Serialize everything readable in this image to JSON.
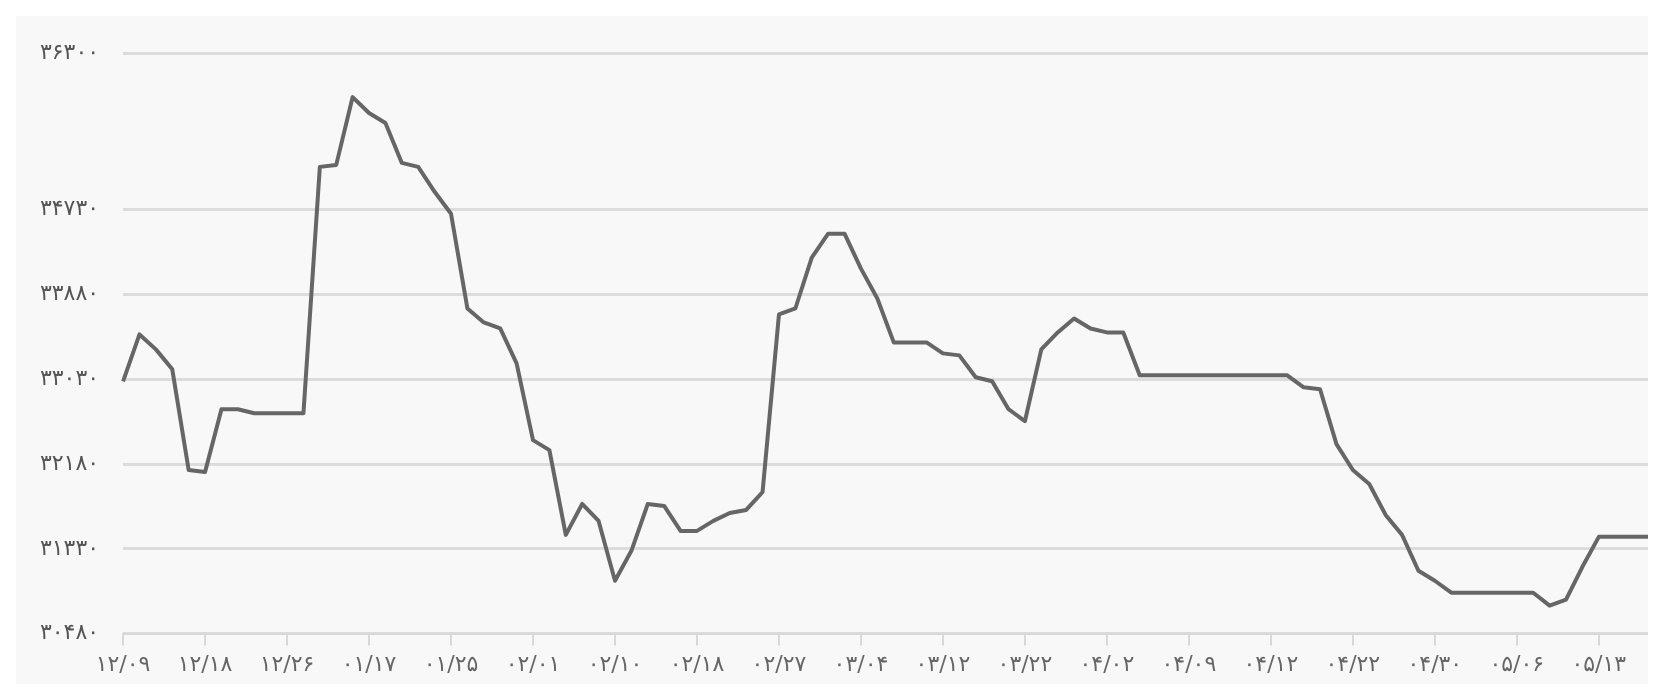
{
  "chart_data": {
    "type": "line",
    "categories": [
      "۱۲/۰۹",
      null,
      null,
      null,
      null,
      "۱۲/۱۸",
      null,
      null,
      null,
      null,
      "۱۲/۲۶",
      null,
      null,
      null,
      null,
      "۰۱/۱۷",
      null,
      null,
      null,
      null,
      "۰۱/۲۵",
      null,
      null,
      null,
      null,
      "۰۲/۰۱",
      null,
      null,
      null,
      null,
      "۰۲/۱۰",
      null,
      null,
      null,
      null,
      "۰۲/۱۸",
      null,
      null,
      null,
      null,
      "۰۲/۲۷",
      null,
      null,
      null,
      null,
      "۰۳/۰۴",
      null,
      null,
      null,
      null,
      "۰۳/۱۲",
      null,
      null,
      null,
      null,
      "۰۳/۲۲",
      null,
      null,
      null,
      null,
      "۰۴/۰۲",
      null,
      null,
      null,
      null,
      "۰۴/۰۹",
      null,
      null,
      null,
      null,
      "۰۴/۱۲",
      null,
      null,
      null,
      null,
      "۰۴/۲۲",
      null,
      null,
      null,
      null,
      "۰۴/۳۰",
      null,
      null,
      null,
      null,
      "۰۵/۰۶",
      null,
      null,
      null,
      null,
      "۰۵/۱۳",
      null,
      null,
      null
    ],
    "series": [
      {
        "color": "#666666",
        "values": [
          33010,
          33480,
          33330,
          33130,
          32120,
          32100,
          32730,
          32730,
          32690,
          32690,
          32690,
          32690,
          35160,
          35180,
          35860,
          35700,
          35600,
          35200,
          35160,
          34910,
          34690,
          33740,
          33600,
          33540,
          33190,
          32420,
          32320,
          31470,
          31780,
          31610,
          31010,
          31310,
          31780,
          31760,
          31510,
          31510,
          31610,
          31690,
          31720,
          31900,
          33680,
          33740,
          34250,
          34490,
          34490,
          34140,
          33840,
          33400,
          33400,
          33400,
          33290,
          33270,
          33050,
          33010,
          32730,
          32610,
          33330,
          33500,
          33640,
          33540,
          33500,
          33500,
          33070,
          33070,
          33070,
          33070,
          33070,
          33070,
          33070,
          33070,
          33070,
          33070,
          32950,
          32930,
          32380,
          32120,
          31980,
          31670,
          31470,
          31110,
          31010,
          30890,
          30890,
          30890,
          30890,
          30890,
          30890,
          30760,
          30820,
          31150,
          31450,
          31450,
          31450,
          31450
        ]
      }
    ],
    "ylim": [
      30480,
      36300
    ],
    "yticks": [
      {
        "value": 30480,
        "label": "۳۰۴۸۰"
      },
      {
        "value": 31330,
        "label": "۳۱۳۳۰"
      },
      {
        "value": 32180,
        "label": "۳۲۱۸۰"
      },
      {
        "value": 33030,
        "label": "۳۳۰۳۰"
      },
      {
        "value": 33880,
        "label": "۳۳۸۸۰"
      },
      {
        "value": 34730,
        "label": "۳۴۷۳۰"
      },
      {
        "value": 36300,
        "label": "۳۶۳۰۰"
      }
    ],
    "grid": "y",
    "legend": false,
    "marker": "none",
    "line_style": "solid"
  }
}
